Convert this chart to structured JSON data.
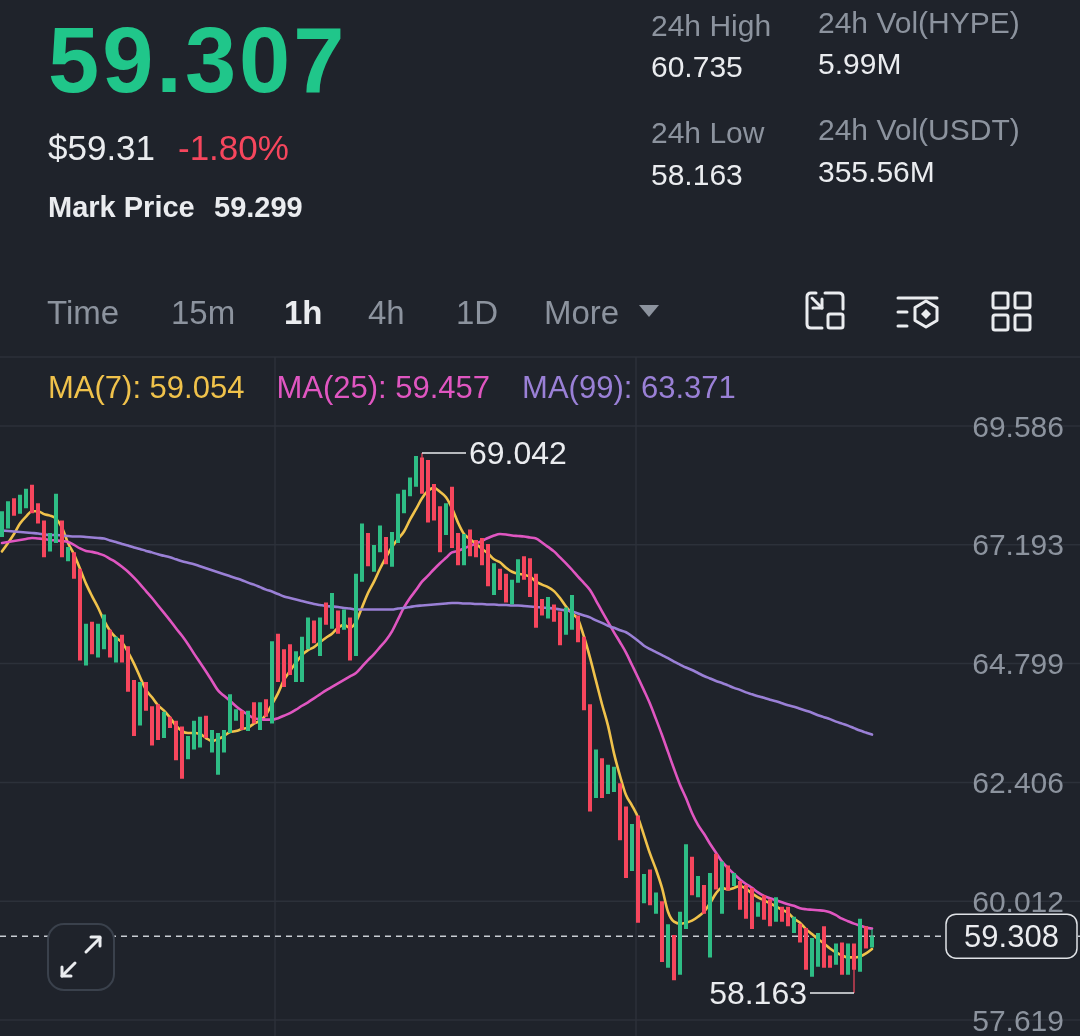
{
  "chart_data": {
    "type": "candlestick",
    "title": "59.307",
    "annotations": [
      "$59.31",
      "-1.80%",
      "Mark Price",
      "59.299",
      "24h High",
      "60.735",
      "24h Vol(HYPE)",
      "5.99M",
      "24h Low",
      "58.163",
      "24h Vol(USDT)",
      "355.56M",
      "Time",
      "15m",
      "1h",
      "4h",
      "1D",
      "More",
      "69.042",
      "58.163",
      "59.308"
    ],
    "categories": [
      null,
      null,
      null,
      null,
      null,
      null,
      null,
      null,
      null,
      null,
      null,
      null,
      null,
      null,
      null,
      null,
      null,
      null,
      null,
      null,
      null,
      null,
      null,
      null,
      null,
      null,
      null,
      null,
      null,
      null,
      null,
      null,
      null,
      null,
      null,
      null,
      null,
      null,
      null,
      null,
      null,
      null,
      null,
      null,
      null,
      null,
      null,
      null,
      null,
      null,
      null,
      null,
      null,
      null,
      null,
      null,
      null,
      null,
      null,
      null,
      null,
      null,
      null,
      null,
      null,
      null,
      null,
      null,
      null,
      null,
      null,
      null,
      null,
      null,
      null,
      null,
      null,
      null,
      null,
      null,
      null,
      null,
      null,
      null,
      null,
      null,
      null,
      null,
      null,
      null,
      null,
      null,
      null,
      null,
      null,
      null,
      null,
      null,
      null,
      null,
      null,
      null,
      null,
      null,
      null,
      null,
      null,
      null,
      null,
      null,
      null,
      null,
      null,
      null,
      null,
      null,
      null,
      null,
      null,
      null,
      null,
      null,
      null,
      null,
      null,
      null,
      null,
      null,
      null,
      null,
      null,
      null,
      null,
      null,
      null,
      null,
      null,
      null,
      null,
      null,
      null,
      null,
      null,
      null,
      null,
      null
    ],
    "ohlc": [
      [
        67.35,
        67.87,
        67.35,
        67.87
      ],
      [
        67.52,
        68.07,
        67.52,
        68.07
      ],
      [
        68.13,
        68.13,
        67.78,
        67.78
      ],
      [
        67.82,
        68.2,
        67.82,
        68.2
      ],
      [
        67.93,
        68.32,
        67.93,
        68.32
      ],
      [
        68.4,
        68.4,
        67.83,
        67.83
      ],
      [
        68.03,
        68.03,
        67.62,
        67.62
      ],
      [
        67.68,
        67.68,
        66.94,
        66.94
      ],
      [
        67.06,
        67.43,
        67.06,
        67.43
      ],
      [
        67.23,
        68.22,
        67.23,
        68.22
      ],
      [
        67.68,
        67.68,
        66.94,
        66.94
      ],
      [
        66.86,
        67.15,
        66.86,
        67.15
      ],
      [
        67.04,
        67.04,
        66.51,
        66.51
      ],
      [
        66.71,
        66.71,
        64.86,
        64.86
      ],
      [
        64.76,
        65.6,
        64.76,
        65.6
      ],
      [
        65.64,
        65.64,
        64.99,
        64.99
      ],
      [
        64.92,
        65.6,
        64.92,
        65.6
      ],
      [
        65.09,
        65.79,
        65.09,
        65.79
      ],
      [
        65.48,
        65.48,
        64.92,
        64.92
      ],
      [
        64.82,
        65.34,
        64.82,
        65.34
      ],
      [
        65.38,
        65.38,
        64.82,
        64.82
      ],
      [
        65.15,
        65.15,
        64.23,
        64.23
      ],
      [
        64.47,
        64.47,
        63.34,
        63.34
      ],
      [
        63.55,
        64.43,
        63.55,
        64.43
      ],
      [
        64.43,
        64.43,
        63.85,
        63.85
      ],
      [
        63.94,
        63.94,
        63.15,
        63.15
      ],
      [
        63.98,
        63.98,
        63.26,
        63.26
      ],
      [
        63.3,
        63.83,
        63.3,
        63.83
      ],
      [
        63.73,
        63.73,
        63.5,
        63.5
      ],
      [
        63.65,
        63.65,
        62.85,
        62.85
      ],
      [
        63.53,
        63.53,
        62.48,
        62.48
      ],
      [
        62.87,
        63.34,
        62.87,
        63.34
      ],
      [
        63.07,
        63.65,
        63.07,
        63.65
      ],
      [
        63.11,
        63.73,
        63.11,
        63.73
      ],
      [
        63.75,
        63.75,
        63.3,
        63.3
      ],
      [
        63.01,
        63.46,
        63.01,
        63.46
      ],
      [
        62.56,
        63.4,
        62.56,
        63.4
      ],
      [
        63.01,
        63.46,
        63.01,
        63.46
      ],
      [
        63.4,
        64.18,
        63.4,
        64.18
      ],
      [
        63.65,
        63.88,
        63.65,
        63.88
      ],
      [
        63.85,
        63.85,
        63.46,
        63.46
      ],
      [
        63.44,
        63.85,
        63.44,
        63.85
      ],
      [
        64.02,
        64.02,
        63.59,
        63.59
      ],
      [
        63.46,
        64.02,
        63.46,
        64.02
      ],
      [
        64.08,
        64.08,
        63.73,
        63.73
      ],
      [
        63.59,
        65.25,
        63.59,
        65.25
      ],
      [
        65.4,
        65.4,
        64.43,
        64.43
      ],
      [
        65.09,
        65.09,
        64.33,
        64.33
      ],
      [
        65.19,
        65.19,
        64.57,
        64.57
      ],
      [
        64.43,
        65.05,
        64.43,
        65.05
      ],
      [
        64.43,
        65.34,
        64.43,
        65.34
      ],
      [
        65.09,
        65.73,
        65.09,
        65.73
      ],
      [
        65.67,
        65.67,
        65.21,
        65.21
      ],
      [
        64.95,
        65.73,
        64.95,
        65.73
      ],
      [
        66.03,
        66.03,
        65.58,
        65.58
      ],
      [
        65.5,
        66.22,
        65.5,
        66.22
      ],
      [
        65.87,
        65.87,
        65.4,
        65.4
      ],
      [
        65.48,
        65.89,
        65.48,
        65.89
      ],
      [
        65.73,
        65.73,
        64.86,
        64.86
      ],
      [
        64.95,
        66.61,
        64.95,
        66.61
      ],
      [
        66.45,
        67.62,
        66.45,
        67.62
      ],
      [
        67.43,
        67.43,
        66.76,
        66.76
      ],
      [
        66.65,
        67.19,
        66.65,
        67.19
      ],
      [
        67.04,
        67.58,
        67.04,
        67.58
      ],
      [
        67.35,
        67.35,
        66.8,
        66.8
      ],
      [
        66.75,
        67.45,
        66.75,
        67.45
      ],
      [
        67.23,
        68.22,
        67.23,
        68.22
      ],
      [
        67.83,
        68.3,
        67.83,
        68.3
      ],
      [
        68.17,
        68.55,
        68.17,
        68.55
      ],
      [
        68.36,
        68.98,
        68.36,
        68.98
      ],
      [
        68.95,
        69.042,
        68.22,
        68.22
      ],
      [
        68.9,
        68.9,
        67.64,
        67.64
      ],
      [
        68.42,
        68.42,
        67.68,
        67.68
      ],
      [
        67.97,
        67.97,
        67.04,
        67.04
      ],
      [
        67.39,
        68.03,
        67.39,
        68.03
      ],
      [
        68.36,
        68.36,
        67.13,
        67.13
      ],
      [
        67.43,
        67.43,
        66.78,
        66.78
      ],
      [
        66.78,
        67.41,
        66.78,
        67.41
      ],
      [
        67.5,
        67.5,
        66.96,
        66.96
      ],
      [
        67.29,
        67.29,
        66.94,
        66.94
      ],
      [
        67.33,
        67.33,
        66.78,
        66.78
      ],
      [
        67.21,
        67.21,
        66.36,
        66.36
      ],
      [
        66.18,
        66.82,
        66.18,
        66.82
      ],
      [
        66.71,
        66.71,
        66.28,
        66.28
      ],
      [
        66.61,
        66.61,
        66.03,
        66.03
      ],
      [
        65.99,
        66.49,
        65.99,
        66.49
      ],
      [
        66.43,
        66.9,
        66.43,
        66.9
      ],
      [
        66.96,
        66.96,
        66.49,
        66.49
      ],
      [
        66.92,
        66.92,
        66.14,
        66.14
      ],
      [
        66.61,
        66.61,
        65.52,
        65.52
      ],
      [
        66.1,
        66.1,
        65.77,
        65.77
      ],
      [
        65.71,
        66.14,
        65.71,
        66.14
      ],
      [
        65.99,
        65.99,
        65.64,
        65.64
      ],
      [
        65.85,
        65.85,
        65.17,
        65.17
      ],
      [
        65.38,
        65.93,
        65.38,
        65.93
      ],
      [
        65.48,
        66.18,
        65.48,
        66.18
      ],
      [
        65.77,
        65.77,
        65.23,
        65.23
      ],
      [
        65.34,
        65.34,
        63.86,
        63.86
      ],
      [
        63.98,
        63.98,
        61.82,
        61.82
      ],
      [
        62.09,
        63.07,
        62.09,
        63.07
      ],
      [
        62.89,
        62.89,
        62.09,
        62.09
      ],
      [
        62.17,
        62.76,
        62.17,
        62.76
      ],
      [
        62.21,
        62.72,
        62.21,
        62.72
      ],
      [
        62.39,
        62.39,
        61.24,
        61.24
      ],
      [
        61.92,
        61.92,
        60.48,
        60.48
      ],
      [
        60.62,
        61.57,
        60.62,
        61.57
      ],
      [
        61.74,
        61.74,
        59.58,
        59.58
      ],
      [
        59.97,
        60.56,
        59.97,
        60.56
      ],
      [
        60.65,
        60.65,
        59.93,
        59.93
      ],
      [
        59.76,
        60.19,
        59.76,
        60.19
      ],
      [
        60.01,
        60.01,
        58.79,
        58.79
      ],
      [
        58.67,
        59.55,
        58.67,
        59.55
      ],
      [
        59.33,
        59.33,
        58.42,
        58.42
      ],
      [
        58.53,
        59.8,
        58.53,
        59.8
      ],
      [
        59.45,
        61.16,
        59.45,
        61.16
      ],
      [
        60.91,
        60.91,
        60.13,
        60.13
      ],
      [
        60.09,
        60.52,
        60.09,
        60.52
      ],
      [
        60.34,
        60.34,
        59.76,
        59.76
      ],
      [
        58.88,
        60.58,
        58.88,
        60.58
      ],
      [
        60.97,
        60.97,
        60.25,
        60.25
      ],
      [
        59.76,
        60.81,
        59.76,
        60.81
      ],
      [
        60.73,
        60.73,
        60.23,
        60.23
      ],
      [
        60.32,
        60.58,
        60.32,
        60.58
      ],
      [
        60.42,
        60.42,
        59.84,
        59.84
      ],
      [
        60.34,
        60.34,
        59.66,
        59.66
      ],
      [
        60.28,
        60.28,
        59.45,
        59.45
      ],
      [
        59.7,
        59.99,
        59.7,
        59.99
      ],
      [
        60.13,
        60.13,
        59.64,
        59.64
      ],
      [
        60.05,
        60.05,
        59.51,
        59.51
      ],
      [
        59.6,
        60.09,
        59.6,
        60.09
      ],
      [
        59.9,
        59.9,
        59.6,
        59.6
      ],
      [
        59.9,
        59.9,
        59.51,
        59.51
      ],
      [
        59.37,
        59.7,
        59.37,
        59.7
      ],
      [
        59.56,
        59.56,
        59.18,
        59.18
      ],
      [
        59.47,
        59.47,
        58.63,
        58.63
      ],
      [
        58.49,
        59.27,
        58.49,
        59.27
      ],
      [
        58.69,
        59.37,
        58.69,
        59.37
      ],
      [
        59.51,
        59.51,
        58.67,
        58.67
      ],
      [
        58.92,
        58.92,
        58.67,
        58.67
      ],
      [
        58.73,
        59.16,
        58.73,
        59.16
      ],
      [
        59.18,
        59.18,
        58.53,
        58.53
      ],
      [
        58.53,
        59.16,
        58.53,
        59.16
      ],
      [
        59.16,
        59.16,
        58.163,
        58.63
      ],
      [
        58.59,
        59.66,
        58.59,
        59.66
      ],
      [
        59.51,
        59.51,
        59.06,
        59.06
      ],
      [
        59.08,
        59.45,
        59.08,
        59.308
      ]
    ],
    "series": [
      {
        "name": "MA(7): 59.054",
        "type": "line",
        "color": "#f0c24b",
        "values": [
          67.06,
          67.23,
          67.41,
          67.62,
          67.76,
          67.87,
          67.87,
          67.81,
          67.78,
          67.72,
          67.54,
          67.23,
          67.0,
          66.71,
          66.41,
          66.16,
          65.93,
          65.67,
          65.46,
          65.32,
          65.23,
          65.03,
          64.8,
          64.53,
          64.27,
          64.12,
          63.96,
          63.85,
          63.71,
          63.55,
          63.44,
          63.4,
          63.4,
          63.38,
          63.3,
          63.24,
          63.28,
          63.34,
          63.42,
          63.44,
          63.48,
          63.51,
          63.59,
          63.65,
          63.77,
          63.98,
          64.2,
          64.47,
          64.65,
          64.82,
          64.97,
          65.07,
          65.13,
          65.23,
          65.32,
          65.4,
          65.52,
          65.58,
          65.52,
          65.64,
          65.93,
          66.22,
          66.45,
          66.71,
          66.94,
          67.15,
          67.31,
          67.46,
          67.7,
          67.91,
          68.13,
          68.28,
          68.34,
          68.26,
          68.15,
          67.93,
          67.64,
          67.41,
          67.31,
          67.21,
          67.11,
          67.02,
          66.9,
          66.84,
          66.73,
          66.65,
          66.61,
          66.59,
          66.55,
          66.45,
          66.39,
          66.34,
          66.26,
          66.12,
          65.95,
          65.81,
          65.69,
          65.34,
          64.92,
          64.45,
          63.98,
          63.55,
          62.99,
          62.54,
          62.15,
          61.94,
          61.7,
          61.34,
          60.97,
          60.65,
          60.28,
          59.8,
          59.6,
          59.56,
          59.58,
          59.62,
          59.7,
          59.8,
          59.97,
          60.17,
          60.28,
          60.25,
          60.28,
          60.32,
          60.26,
          60.17,
          60.09,
          60.03,
          59.97,
          59.91,
          59.84,
          59.78,
          59.66,
          59.58,
          59.45,
          59.35,
          59.25,
          59.16,
          59.06,
          58.98,
          58.92,
          58.88,
          58.88,
          58.9,
          58.96,
          59.05
        ]
      },
      {
        "name": "MA(25): 59.457",
        "type": "line",
        "color": "#e056c1",
        "values": [
          67.23,
          67.25,
          67.27,
          67.29,
          67.31,
          67.33,
          67.32,
          67.31,
          67.29,
          67.28,
          67.27,
          67.25,
          67.19,
          67.12,
          67.07,
          67.05,
          67.02,
          66.98,
          66.91,
          66.84,
          66.75,
          66.65,
          66.53,
          66.4,
          66.26,
          66.12,
          65.97,
          65.82,
          65.67,
          65.51,
          65.36,
          65.19,
          65.0,
          64.82,
          64.64,
          64.45,
          64.26,
          64.15,
          64.05,
          63.94,
          63.85,
          63.77,
          63.7,
          63.68,
          63.67,
          63.67,
          63.7,
          63.75,
          63.8,
          63.87,
          63.95,
          64.02,
          64.1,
          64.18,
          64.26,
          64.33,
          64.4,
          64.47,
          64.54,
          64.61,
          64.74,
          64.87,
          64.99,
          65.13,
          65.27,
          65.45,
          65.69,
          65.93,
          66.12,
          66.28,
          66.45,
          66.57,
          66.7,
          66.82,
          66.93,
          67.04,
          67.07,
          67.12,
          67.17,
          67.22,
          67.27,
          67.33,
          67.38,
          67.41,
          67.4,
          67.38,
          67.37,
          67.36,
          67.34,
          67.32,
          67.24,
          67.15,
          67.06,
          66.94,
          66.82,
          66.69,
          66.55,
          66.42,
          66.28,
          66.07,
          65.85,
          65.64,
          65.43,
          65.23,
          65.02,
          64.77,
          64.52,
          64.26,
          63.99,
          63.68,
          63.36,
          63.02,
          62.68,
          62.36,
          62.09,
          61.79,
          61.55,
          61.37,
          61.17,
          60.99,
          60.81,
          60.68,
          60.56,
          60.45,
          60.36,
          60.28,
          60.19,
          60.12,
          60.07,
          60.03,
          59.99,
          59.95,
          59.92,
          59.87,
          59.85,
          59.84,
          59.83,
          59.82,
          59.79,
          59.73,
          59.66,
          59.61,
          59.56,
          59.52,
          59.48,
          59.46
        ]
      },
      {
        "name": "MA(99): 63.371",
        "type": "line",
        "color": "#9a80d6",
        "values": [
          67.48,
          67.47,
          67.46,
          67.45,
          67.44,
          67.43,
          67.42,
          67.4,
          67.39,
          67.39,
          67.38,
          67.37,
          67.36,
          67.36,
          67.35,
          67.34,
          67.33,
          67.32,
          67.28,
          67.25,
          67.21,
          67.18,
          67.14,
          67.11,
          67.07,
          67.04,
          67.0,
          66.97,
          66.94,
          66.9,
          66.86,
          66.83,
          66.8,
          66.76,
          66.72,
          66.68,
          66.64,
          66.6,
          66.56,
          66.52,
          66.48,
          66.43,
          66.39,
          66.34,
          66.29,
          66.25,
          66.2,
          66.15,
          66.12,
          66.09,
          66.06,
          66.03,
          66.0,
          65.98,
          65.96,
          65.95,
          65.94,
          65.92,
          65.91,
          65.89,
          65.89,
          65.89,
          65.89,
          65.89,
          65.89,
          65.89,
          65.91,
          65.92,
          65.94,
          65.96,
          65.97,
          65.98,
          65.99,
          66.0,
          66.01,
          66.02,
          66.02,
          66.01,
          66.01,
          66.0,
          66.0,
          65.99,
          65.99,
          65.98,
          65.98,
          65.97,
          65.97,
          65.96,
          65.95,
          65.94,
          65.93,
          65.92,
          65.91,
          65.89,
          65.87,
          65.85,
          65.81,
          65.77,
          65.73,
          65.67,
          65.62,
          65.56,
          65.52,
          65.47,
          65.43,
          65.35,
          65.26,
          65.16,
          65.09,
          65.03,
          64.97,
          64.91,
          64.84,
          64.78,
          64.72,
          64.67,
          64.61,
          64.55,
          64.5,
          64.45,
          64.41,
          64.36,
          64.31,
          64.27,
          64.22,
          64.18,
          64.14,
          64.11,
          64.07,
          64.04,
          64.0,
          63.96,
          63.93,
          63.89,
          63.85,
          63.81,
          63.76,
          63.72,
          63.68,
          63.63,
          63.59,
          63.55,
          63.5,
          63.45,
          63.41,
          63.37
        ]
      }
    ],
    "ylim": [
      57.619,
      69.586
    ],
    "yticks": [
      57.619,
      60.012,
      62.406,
      64.799,
      67.193,
      69.586
    ],
    "tick_labels": "y",
    "grid": true,
    "legend": "top left",
    "ref_lines": [
      {
        "axis": "y",
        "value": 59.308,
        "line_style": "dashed"
      }
    ]
  }
}
